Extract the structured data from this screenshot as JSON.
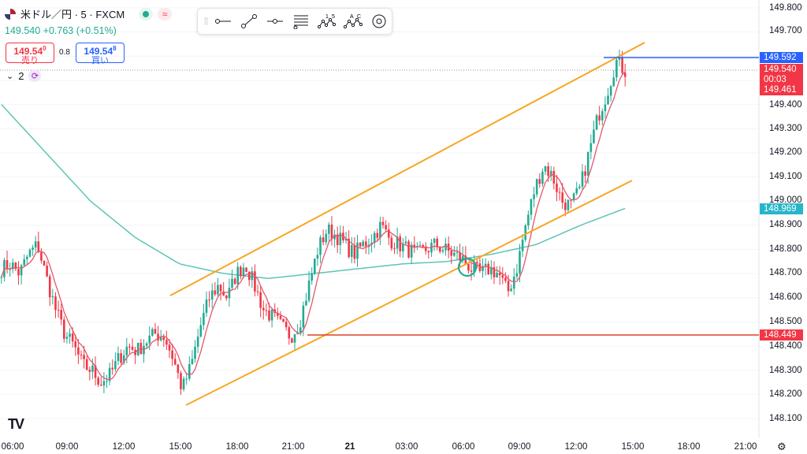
{
  "header": {
    "symbol": "米ドル／円 · 5 · FXCM",
    "change_line": "149.540 +0.763 (+0.51%)"
  },
  "quote": {
    "sell_price": "149.54",
    "sell_super": "0",
    "sell_label": "売り",
    "spread": "0.8",
    "buy_price": "149.54",
    "buy_super": "8",
    "buy_label": "買い"
  },
  "controls": {
    "collapse_count": "2"
  },
  "toolbar": {
    "icons": [
      "drag-grip-icon",
      "horizontal-ray-icon",
      "trend-line-icon",
      "horizontal-line-icon",
      "fib-retracement-icon",
      "elliott-wave-icon",
      "abcd-pattern-icon",
      "target-circle-icon"
    ]
  },
  "colors": {
    "up": "#22ab94",
    "down": "#f23645",
    "channel": "#f7a623",
    "support_line": "#d9442c",
    "ma_fast": "#e5566a",
    "ma_slow": "#5ec4b6",
    "price_line_blue": "#2962ff"
  },
  "chart_data": {
    "type": "candlestick",
    "y_axis_labels": [
      "149.800",
      "149.700",
      "149.592",
      "149.540",
      "00:03",
      "149.461",
      "149.400",
      "149.300",
      "149.200",
      "149.100",
      "149.000",
      "148.969",
      "148.900",
      "148.800",
      "148.700",
      "148.600",
      "148.500",
      "148.449",
      "148.400",
      "148.300",
      "148.200",
      "148.100"
    ],
    "x_axis_labels": [
      "06:00",
      "09:00",
      "12:00",
      "15:00",
      "18:00",
      "21:00",
      "21",
      "03:00",
      "06:00",
      "09:00",
      "12:00",
      "15:00",
      "18:00",
      "21:00"
    ],
    "ylim": [
      148.05,
      149.85
    ],
    "price_tags": {
      "high_line": {
        "label": "149.592",
        "value": 149.592
      },
      "last_price": {
        "label": "149.540",
        "value": 149.54
      },
      "countdown": "00:03",
      "ma_fast_value": {
        "label": "149.461",
        "value": 149.461
      },
      "ma_slow_value": {
        "label": "148.969",
        "value": 148.969
      },
      "support": {
        "label": "148.449",
        "value": 148.449
      }
    },
    "trend_lines": [
      {
        "name": "upper-channel",
        "from": {
          "x_time": "15:00",
          "y": 148.6
        },
        "to": {
          "x_time": "15:00+1",
          "y": 149.78
        }
      },
      {
        "name": "lower-channel",
        "from": {
          "x_time": "15:00",
          "y": 148.17
        },
        "to": {
          "x_time": "15:00+1",
          "y": 149.08
        }
      }
    ],
    "close_path": [
      148.72,
      148.74,
      148.7,
      148.78,
      148.82,
      148.68,
      148.55,
      148.45,
      148.4,
      148.32,
      148.3,
      148.25,
      148.28,
      148.35,
      148.4,
      148.38,
      148.42,
      148.45,
      148.44,
      148.35,
      148.22,
      148.32,
      148.48,
      148.6,
      148.65,
      148.6,
      148.7,
      148.74,
      148.65,
      148.55,
      148.52,
      148.48,
      148.44,
      148.5,
      148.65,
      148.8,
      148.88,
      148.86,
      148.82,
      148.78,
      148.82,
      148.85,
      148.9,
      148.84,
      148.82,
      148.8,
      148.78,
      148.8,
      148.82,
      148.8,
      148.78,
      148.76,
      148.72,
      148.7,
      148.72,
      148.7,
      148.62,
      148.72,
      148.9,
      149.05,
      149.15,
      149.1,
      149.0,
      148.98,
      149.05,
      149.2,
      149.35,
      149.45,
      149.58,
      149.54
    ]
  }
}
